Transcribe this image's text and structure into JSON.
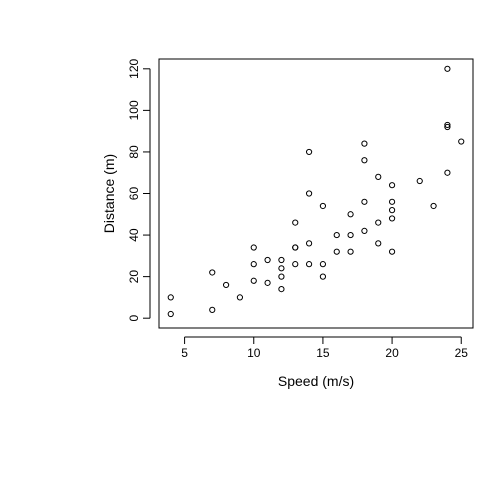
{
  "chart_data": {
    "type": "scatter",
    "title": "",
    "xlabel": "Speed (m/s)",
    "ylabel": "Distance (m)",
    "xlim": [
      3.15,
      25.85
    ],
    "ylim": [
      -4.72,
      124.72
    ],
    "xticks": [
      5,
      10,
      15,
      20,
      25
    ],
    "yticks": [
      0,
      20,
      40,
      60,
      80,
      100,
      120
    ],
    "grid": false,
    "marker": "circle-open",
    "marker_color": "#000000",
    "points": [
      [
        4,
        2
      ],
      [
        4,
        10
      ],
      [
        7,
        4
      ],
      [
        7,
        22
      ],
      [
        8,
        16
      ],
      [
        9,
        10
      ],
      [
        10,
        18
      ],
      [
        10,
        26
      ],
      [
        10,
        34
      ],
      [
        11,
        17
      ],
      [
        11,
        28
      ],
      [
        12,
        14
      ],
      [
        12,
        20
      ],
      [
        12,
        24
      ],
      [
        12,
        28
      ],
      [
        13,
        26
      ],
      [
        13,
        34
      ],
      [
        13,
        34
      ],
      [
        13,
        46
      ],
      [
        14,
        26
      ],
      [
        14,
        36
      ],
      [
        14,
        60
      ],
      [
        14,
        80
      ],
      [
        15,
        20
      ],
      [
        15,
        26
      ],
      [
        15,
        54
      ],
      [
        16,
        32
      ],
      [
        16,
        40
      ],
      [
        17,
        32
      ],
      [
        17,
        40
      ],
      [
        17,
        50
      ],
      [
        18,
        42
      ],
      [
        18,
        56
      ],
      [
        18,
        76
      ],
      [
        18,
        84
      ],
      [
        19,
        36
      ],
      [
        19,
        46
      ],
      [
        19,
        68
      ],
      [
        20,
        32
      ],
      [
        20,
        48
      ],
      [
        20,
        52
      ],
      [
        20,
        56
      ],
      [
        20,
        64
      ],
      [
        22,
        66
      ],
      [
        23,
        54
      ],
      [
        24,
        70
      ],
      [
        24,
        92
      ],
      [
        24,
        93
      ],
      [
        24,
        120
      ],
      [
        25,
        85
      ]
    ]
  }
}
